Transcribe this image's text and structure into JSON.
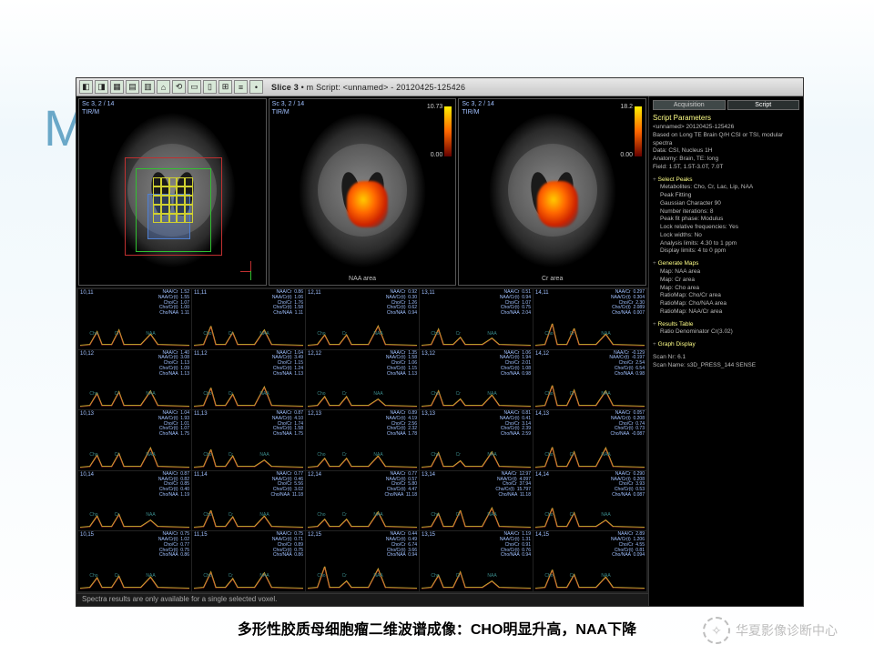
{
  "slide": {
    "corner_letter": "M",
    "caption": "多形性胶质母细胞瘤二维波谱成像：CHO明显升高，NAA下降",
    "watermark": "华夏影像诊断中心"
  },
  "app": {
    "toolbar_icons": [
      "◧",
      "◨",
      "▦",
      "▤",
      "▥",
      "⌂",
      "⟲",
      "▭",
      "▯",
      "⊞",
      "≡",
      "•"
    ],
    "title_prefix": "Slice 3",
    "title_rest": " • m  Script: <unnamed> - 20120425-125426",
    "statusbar": "Spectra results are only available for a single selected voxel."
  },
  "brain_panels": [
    {
      "top": "Sc 3, 2 / 14",
      "sub": "TIR/M",
      "roi_grid": true,
      "heatmap": false,
      "axis": true,
      "caption": ""
    },
    {
      "top": "Sc 3, 2 / 14",
      "sub": "TIR/M",
      "roi_grid": false,
      "heatmap": true,
      "axis": false,
      "caption": "NAA area",
      "cbar_top": "10.73",
      "cbar_bot": "0.00"
    },
    {
      "top": "Sc 3, 2 / 14",
      "sub": "TIR/M",
      "roi_grid": false,
      "heatmap": true,
      "axis": false,
      "caption": "Cr area",
      "cbar_top": "18.2",
      "cbar_bot": "0.00"
    }
  ],
  "spectra": {
    "peak_labels": [
      "Cho",
      "Cr",
      "NAA"
    ],
    "metrics_labels": [
      "NAA/Cr",
      "NAA/Cr(t)",
      "Cho/Cr",
      "Cho/Cr(t)",
      "Cho/NAA"
    ],
    "curve_color": "#d0b030",
    "fit_color": "#c03030",
    "cells": [
      {
        "id": "10,11",
        "v": [
          "1.52",
          "1.55",
          "1.07",
          "1.00",
          "1.11"
        ]
      },
      {
        "id": "11,11",
        "v": [
          "0.86",
          "1.06",
          "1.76",
          "1.58",
          "1.11"
        ]
      },
      {
        "id": "12,11",
        "v": [
          "0.92",
          "0.30",
          "1.26",
          "0.62",
          "0.94"
        ]
      },
      {
        "id": "13,11",
        "v": [
          "0.51",
          "0.94",
          "1.07",
          "0.75",
          "2.04"
        ]
      },
      {
        "id": "14,11",
        "v": [
          "0.297",
          "0.304",
          "2.30",
          "2.089",
          "0.007"
        ]
      },
      {
        "id": "10,12",
        "v": [
          "1.40",
          "3.08",
          "1.13",
          "1.09",
          "1.13"
        ]
      },
      {
        "id": "11,12",
        "v": [
          "1.04",
          "3.49",
          "1.15",
          "1.24",
          "1.13"
        ]
      },
      {
        "id": "12,12",
        "v": [
          "1.35",
          "1.58",
          "1.06",
          "1.15",
          "1.13"
        ]
      },
      {
        "id": "13,12",
        "v": [
          "1.06",
          "1.94",
          "2.01",
          "1.08",
          "0.98"
        ]
      },
      {
        "id": "14,12",
        "v": [
          "-0.129",
          "-0.197",
          "2.54",
          "6.54",
          "0.98"
        ]
      },
      {
        "id": "10,13",
        "v": [
          "1.04",
          "1.93",
          "1.01",
          "1.07",
          "1.75"
        ]
      },
      {
        "id": "11,13",
        "v": [
          "0.87",
          "4.10",
          "1.74",
          "1.58",
          "1.75"
        ]
      },
      {
        "id": "12,13",
        "v": [
          "0.89",
          "4.19",
          "2.56",
          "2.32",
          "1.78"
        ]
      },
      {
        "id": "13,13",
        "v": [
          "0.81",
          "0.41",
          "3.14",
          "2.39",
          "2.59"
        ]
      },
      {
        "id": "14,13",
        "v": [
          "0.057",
          "0.208",
          "0.74",
          "0.73",
          "-0.087"
        ]
      },
      {
        "id": "10,14",
        "v": [
          "0.87",
          "0.82",
          "0.85",
          "0.40",
          "1.19"
        ]
      },
      {
        "id": "11,14",
        "v": [
          "0.77",
          "0.46",
          "5.56",
          "3.02",
          "11.18"
        ]
      },
      {
        "id": "12,14",
        "v": [
          "0.77",
          "0.57",
          "5.80",
          "4.47",
          "11.18"
        ]
      },
      {
        "id": "13,14",
        "v": [
          "12.97",
          "4.097",
          "37.94",
          "15.797",
          "11.18"
        ]
      },
      {
        "id": "14,14",
        "v": [
          "0.290",
          "0.208",
          "3.93",
          "0.53",
          "0.087"
        ]
      },
      {
        "id": "10,15",
        "v": [
          "0.75",
          "1.02",
          "0.77",
          "0.75",
          "0.86"
        ]
      },
      {
        "id": "11,15",
        "v": [
          "0.75",
          "0.71",
          "0.89",
          "0.75",
          "0.86"
        ]
      },
      {
        "id": "12,15",
        "v": [
          "0.44",
          "0.49",
          "6.74",
          "3.66",
          "0.94"
        ]
      },
      {
        "id": "13,15",
        "v": [
          "1.19",
          "1.31",
          "0.91",
          "0.76",
          "0.94"
        ]
      },
      {
        "id": "14,15",
        "v": [
          "2.89",
          "1.206",
          "4.55",
          "0.81",
          "0.094"
        ]
      }
    ]
  },
  "right_panel": {
    "tabs": [
      "Acquisition",
      "Script"
    ],
    "active_tab": 1,
    "header": "Script Parameters",
    "intro": [
      "<unnamed> 20120425-125426",
      "Based on Long TE Brain Q/H CSI or TSI, modular spectra",
      "Data: CSI, Nucleus 1H",
      "Anatomy: Brain, TE: long",
      "Field: 1.5T, 1.5T-3.0T, 7.0T"
    ],
    "sections": [
      {
        "title": "Select Peaks",
        "lines": [
          "Metabolites: Cho, Cr, Lac, Lip, NAA",
          "Peak Fitting",
          "Gaussian Character 90",
          "Number iterations: 8",
          "Peak fit phase: Modulus",
          "Lock relative frequencies: Yes",
          "Lock widths: No",
          "Analysis limits: 4.30 to 1 ppm",
          "Display limits: 4 to 0 ppm"
        ]
      },
      {
        "title": "Generate Maps",
        "lines": [
          "Map: NAA area",
          "Map: Cr area",
          "Map: Cho area",
          "RatioMap: Cho/Cr area",
          "RatioMap: Cho/NAA area",
          "RatioMap: NAA/Cr area"
        ]
      },
      {
        "title": "Results Table",
        "lines": [
          "Ratio Denominator Cr(3.02)"
        ]
      },
      {
        "title": "Graph Display",
        "lines": []
      }
    ],
    "footer": [
      "Scan Nr: 6.1",
      "Scan Name: s3D_PRESS_144 SENSE"
    ]
  }
}
